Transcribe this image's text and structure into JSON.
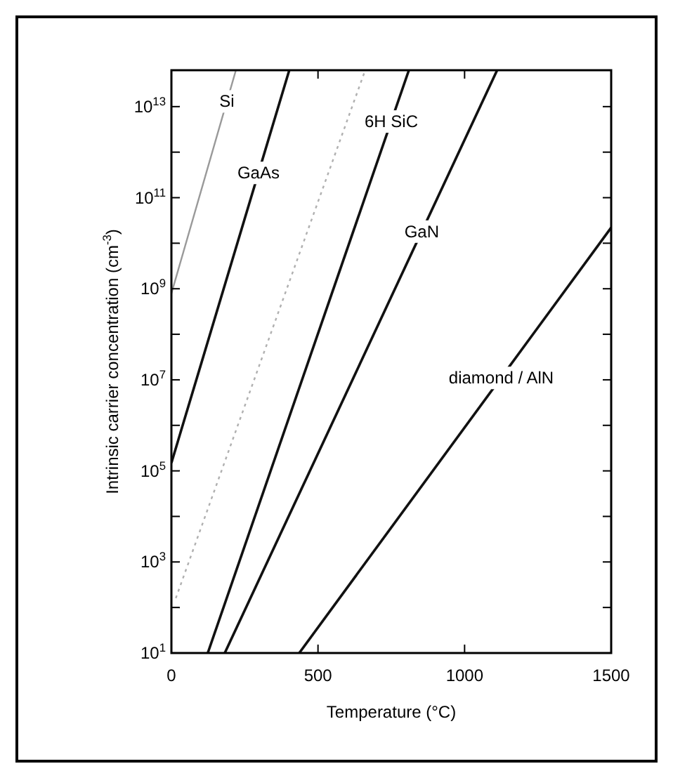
{
  "chart_data": {
    "type": "line",
    "xlabel": "Temperature (°C)",
    "ylabel": "Intrinsic carrier concentration (cm$^{-3}$)",
    "log": "y",
    "xlim": [
      0,
      1500
    ],
    "xticks": [
      0,
      500,
      1000,
      1500
    ],
    "ylim": [
      10,
      63000000000000.0
    ],
    "yticks": [
      {
        "value": 10,
        "label": "10$^{1}$"
      },
      {
        "value": 100,
        "label": null
      },
      {
        "value": 1000,
        "label": "10$^{3}$"
      },
      {
        "value": 10000,
        "label": null
      },
      {
        "value": 100000,
        "label": "10$^{5}$"
      },
      {
        "value": 1000000,
        "label": null
      },
      {
        "value": 10000000,
        "label": "10$^{7}$"
      },
      {
        "value": 100000000,
        "label": null
      },
      {
        "value": 1000000000,
        "label": "10$^{9}$"
      },
      {
        "value": 10000000000,
        "label": null
      },
      {
        "value": 100000000000,
        "label": "10$^{11}$"
      },
      {
        "value": 1000000000000,
        "label": null
      },
      {
        "value": 10000000000000,
        "label": "10$^{13}$"
      }
    ],
    "grid": false,
    "series": [
      {
        "color": "#999999",
        "line_style": "solid",
        "x": [
          0,
          220
        ],
        "values": [
          790000000.0,
          63000000000000.0
        ]
      },
      {
        "color": "#b0b0b0",
        "line_style": "dotted",
        "x": [
          15,
          661
        ],
        "values": [
          160,
          63000000000000.0
        ]
      },
      {
        "color": "#111111",
        "line_style": "solid",
        "x": [
          0,
          402
        ],
        "values": [
          150000.0,
          63000000000000.0
        ]
      },
      {
        "color": "#111111",
        "line_style": "solid",
        "x": [
          124,
          810
        ],
        "values": [
          10,
          63000000000000.0
        ]
      },
      {
        "color": "#111111",
        "line_style": "solid",
        "x": [
          182,
          1111
        ],
        "values": [
          10,
          63000000000000.0
        ]
      },
      {
        "color": "#111111",
        "line_style": "solid",
        "x": [
          436,
          1500
        ],
        "values": [
          10,
          22000000000.0
        ]
      }
    ],
    "annotations": [
      {
        "text": "Si",
        "x": 189,
        "y": 13000000000000.0
      },
      {
        "text": "GaAs",
        "x": 297,
        "y": 350000000000.0
      },
      {
        "text": "6H SiC",
        "x": 750,
        "y": 4700000000000.0
      },
      {
        "text": "GaN",
        "x": 854,
        "y": 18000000000.0
      },
      {
        "text": "diamond / AlN",
        "x": 1125,
        "y": 11000000.0
      }
    ]
  }
}
